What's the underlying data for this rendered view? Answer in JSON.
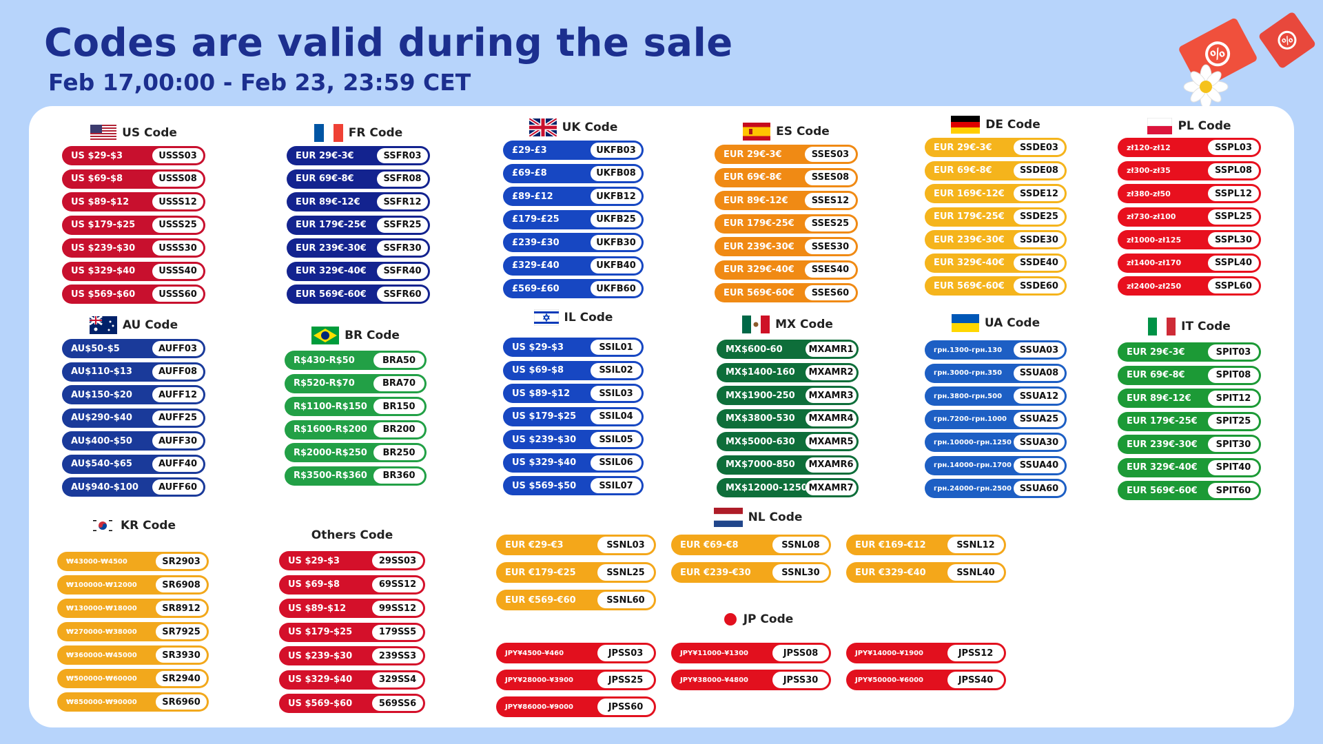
{
  "header": {
    "title": "Codes are valid during the sale",
    "subtitle": "Feb 17,00:00 - Feb 23, 23:59 CET"
  },
  "colors": {
    "us": "#c8102e",
    "fr": "#13238f",
    "uk": "#1747c2",
    "es": "#f08a14",
    "de": "#f5b41c",
    "pl": "#e8101e",
    "au": "#1a3a9a",
    "br": "#22a046",
    "il": "#1747c2",
    "mx": "#0e6e3a",
    "ua": "#1d5fc4",
    "it": "#1c9a36",
    "kr": "#f2a81c",
    "others": "#d4102a",
    "nl": "#f4a71a",
    "jp": "#e2101e"
  },
  "sections": {
    "us": {
      "title": "US Code",
      "rows": [
        {
          "range": "US $29-$3",
          "code": "USSS03"
        },
        {
          "range": "US $69-$8",
          "code": "USSS08"
        },
        {
          "range": "US $89-$12",
          "code": "USSS12"
        },
        {
          "range": "US $179-$25",
          "code": "USSS25"
        },
        {
          "range": "US $239-$30",
          "code": "USSS30"
        },
        {
          "range": "US $329-$40",
          "code": "USSS40"
        },
        {
          "range": "US $569-$60",
          "code": "USSS60"
        }
      ]
    },
    "fr": {
      "title": "FR Code",
      "rows": [
        {
          "range": "EUR 29€-3€",
          "code": "SSFR03"
        },
        {
          "range": "EUR 69€-8€",
          "code": "SSFR08"
        },
        {
          "range": "EUR 89€-12€",
          "code": "SSFR12"
        },
        {
          "range": "EUR 179€-25€",
          "code": "SSFR25"
        },
        {
          "range": "EUR 239€-30€",
          "code": "SSFR30"
        },
        {
          "range": "EUR 329€-40€",
          "code": "SSFR40"
        },
        {
          "range": "EUR 569€-60€",
          "code": "SSFR60"
        }
      ]
    },
    "uk": {
      "title": "UK Code",
      "rows": [
        {
          "range": "£29-£3",
          "code": "UKFB03"
        },
        {
          "range": "£69-£8",
          "code": "UKFB08"
        },
        {
          "range": "£89-£12",
          "code": "UKFB12"
        },
        {
          "range": "£179-£25",
          "code": "UKFB25"
        },
        {
          "range": "£239-£30",
          "code": "UKFB30"
        },
        {
          "range": "£329-£40",
          "code": "UKFB40"
        },
        {
          "range": "£569-£60",
          "code": "UKFB60"
        }
      ]
    },
    "es": {
      "title": "ES Code",
      "rows": [
        {
          "range": "EUR 29€-3€",
          "code": "SSES03"
        },
        {
          "range": "EUR 69€-8€",
          "code": "SSES08"
        },
        {
          "range": "EUR 89€-12€",
          "code": "SSES12"
        },
        {
          "range": "EUR 179€-25€",
          "code": "SSES25"
        },
        {
          "range": "EUR 239€-30€",
          "code": "SSES30"
        },
        {
          "range": "EUR 329€-40€",
          "code": "SSES40"
        },
        {
          "range": "EUR 569€-60€",
          "code": "SSES60"
        }
      ]
    },
    "de": {
      "title": "DE Code",
      "rows": [
        {
          "range": "EUR 29€-3€",
          "code": "SSDE03"
        },
        {
          "range": "EUR 69€-8€",
          "code": "SSDE08"
        },
        {
          "range": "EUR 169€-12€",
          "code": "SSDE12"
        },
        {
          "range": "EUR 179€-25€",
          "code": "SSDE25"
        },
        {
          "range": "EUR 239€-30€",
          "code": "SSDE30"
        },
        {
          "range": "EUR 329€-40€",
          "code": "SSDE40"
        },
        {
          "range": "EUR 569€-60€",
          "code": "SSDE60"
        }
      ]
    },
    "pl": {
      "title": "PL Code",
      "rows": [
        {
          "range": "zł120-zł12",
          "code": "SSPL03"
        },
        {
          "range": "zł300-zł35",
          "code": "SSPL08"
        },
        {
          "range": "zł380-zł50",
          "code": "SSPL12"
        },
        {
          "range": "zł730-zł100",
          "code": "SSPL25"
        },
        {
          "range": "zł1000-zł125",
          "code": "SSPL30"
        },
        {
          "range": "zł1400-zł170",
          "code": "SSPL40"
        },
        {
          "range": "zł2400-zł250",
          "code": "SSPL60"
        }
      ]
    },
    "au": {
      "title": "AU Code",
      "rows": [
        {
          "range": "AU$50-$5",
          "code": "AUFF03"
        },
        {
          "range": "AU$110-$13",
          "code": "AUFF08"
        },
        {
          "range": "AU$150-$20",
          "code": "AUFF12"
        },
        {
          "range": "AU$290-$40",
          "code": "AUFF25"
        },
        {
          "range": "AU$400-$50",
          "code": "AUFF30"
        },
        {
          "range": "AU$540-$65",
          "code": "AUFF40"
        },
        {
          "range": "AU$940-$100",
          "code": "AUFF60"
        }
      ]
    },
    "br": {
      "title": "BR Code",
      "rows": [
        {
          "range": "R$430-R$50",
          "code": "BRA50"
        },
        {
          "range": "R$520-R$70",
          "code": "BRA70"
        },
        {
          "range": "R$1100-R$150",
          "code": "BR150"
        },
        {
          "range": "R$1600-R$200",
          "code": "BR200"
        },
        {
          "range": "R$2000-R$250",
          "code": "BR250"
        },
        {
          "range": "R$3500-R$360",
          "code": "BR360"
        }
      ]
    },
    "il": {
      "title": "IL Code",
      "rows": [
        {
          "range": "US $29-$3",
          "code": "SSIL01"
        },
        {
          "range": "US $69-$8",
          "code": "SSIL02"
        },
        {
          "range": "US $89-$12",
          "code": "SSIL03"
        },
        {
          "range": "US $179-$25",
          "code": "SSIL04"
        },
        {
          "range": "US $239-$30",
          "code": "SSIL05"
        },
        {
          "range": "US $329-$40",
          "code": "SSIL06"
        },
        {
          "range": "US $569-$50",
          "code": "SSIL07"
        }
      ]
    },
    "mx": {
      "title": "MX Code",
      "rows": [
        {
          "range": "MX$600-60",
          "code": "MXAMR1"
        },
        {
          "range": "MX$1400-160",
          "code": "MXAMR2"
        },
        {
          "range": "MX$1900-250",
          "code": "MXAMR3"
        },
        {
          "range": "MX$3800-530",
          "code": "MXAMR4"
        },
        {
          "range": "MX$5000-630",
          "code": "MXAMR5"
        },
        {
          "range": "MX$7000-850",
          "code": "MXAMR6"
        },
        {
          "range": "MX$12000-1250",
          "code": "MXAMR7"
        }
      ]
    },
    "ua": {
      "title": "UA Code",
      "rows": [
        {
          "range": "грн.1300-грн.130",
          "code": "SSUA03"
        },
        {
          "range": "грн.3000-грн.350",
          "code": "SSUA08"
        },
        {
          "range": "грн.3800-грн.500",
          "code": "SSUA12"
        },
        {
          "range": "грн.7200-грн.1000",
          "code": "SSUA25"
        },
        {
          "range": "грн.10000-грн.1250",
          "code": "SSUA30"
        },
        {
          "range": "грн.14000-грн.1700",
          "code": "SSUA40"
        },
        {
          "range": "грн.24000-грн.2500",
          "code": "SSUA60"
        }
      ]
    },
    "it": {
      "title": "IT Code",
      "rows": [
        {
          "range": "EUR 29€-3€",
          "code": "SPIT03"
        },
        {
          "range": "EUR 69€-8€",
          "code": "SPIT08"
        },
        {
          "range": "EUR 89€-12€",
          "code": "SPIT12"
        },
        {
          "range": "EUR 179€-25€",
          "code": "SPIT25"
        },
        {
          "range": "EUR 239€-30€",
          "code": "SPIT30"
        },
        {
          "range": "EUR 329€-40€",
          "code": "SPIT40"
        },
        {
          "range": "EUR 569€-60€",
          "code": "SPIT60"
        }
      ]
    },
    "kr": {
      "title": "KR Code",
      "rows": [
        {
          "range": "₩43000-₩4500",
          "code": "SR2903"
        },
        {
          "range": "₩100000-₩12000",
          "code": "SR6908"
        },
        {
          "range": "₩130000-₩18000",
          "code": "SR8912"
        },
        {
          "range": "₩270000-₩38000",
          "code": "SR7925"
        },
        {
          "range": "₩360000-₩45000",
          "code": "SR3930"
        },
        {
          "range": "₩500000-₩60000",
          "code": "SR2940"
        },
        {
          "range": "₩850000-₩90000",
          "code": "SR6960"
        }
      ]
    },
    "others": {
      "title": "Others Code",
      "rows": [
        {
          "range": "US $29-$3",
          "code": "29SS03"
        },
        {
          "range": "US $69-$8",
          "code": "69SS12"
        },
        {
          "range": "US $89-$12",
          "code": "99SS12"
        },
        {
          "range": "US $179-$25",
          "code": "179SS5"
        },
        {
          "range": "US $239-$30",
          "code": "239SS3"
        },
        {
          "range": "US $329-$40",
          "code": "329SS4"
        },
        {
          "range": "US $569-$60",
          "code": "569SS6"
        }
      ]
    },
    "nl": {
      "title": "NL Code",
      "rows": [
        {
          "range": "EUR €29-€3",
          "code": "SSNL03"
        },
        {
          "range": "EUR €69-€8",
          "code": "SSNL08"
        },
        {
          "range": "EUR €169-€12",
          "code": "SSNL12"
        },
        {
          "range": "EUR €179-€25",
          "code": "SSNL25"
        },
        {
          "range": "EUR €239-€30",
          "code": "SSNL30"
        },
        {
          "range": "EUR €329-€40",
          "code": "SSNL40"
        },
        {
          "range": "EUR €569-€60",
          "code": "SSNL60"
        }
      ]
    },
    "jp": {
      "title": "JP Code",
      "rows": [
        {
          "range": "JPY¥4500-¥460",
          "code": "JPSS03"
        },
        {
          "range": "JPY¥11000-¥1300",
          "code": "JPSS08"
        },
        {
          "range": "JPY¥14000-¥1900",
          "code": "JPSS12"
        },
        {
          "range": "JPY¥28000-¥3900",
          "code": "JPSS25"
        },
        {
          "range": "JPY¥38000-¥4800",
          "code": "JPSS30"
        },
        {
          "range": "JPY¥50000-¥6000",
          "code": "JPSS40"
        },
        {
          "range": "JPY¥86000-¥9000",
          "code": "JPSS60"
        }
      ]
    }
  }
}
